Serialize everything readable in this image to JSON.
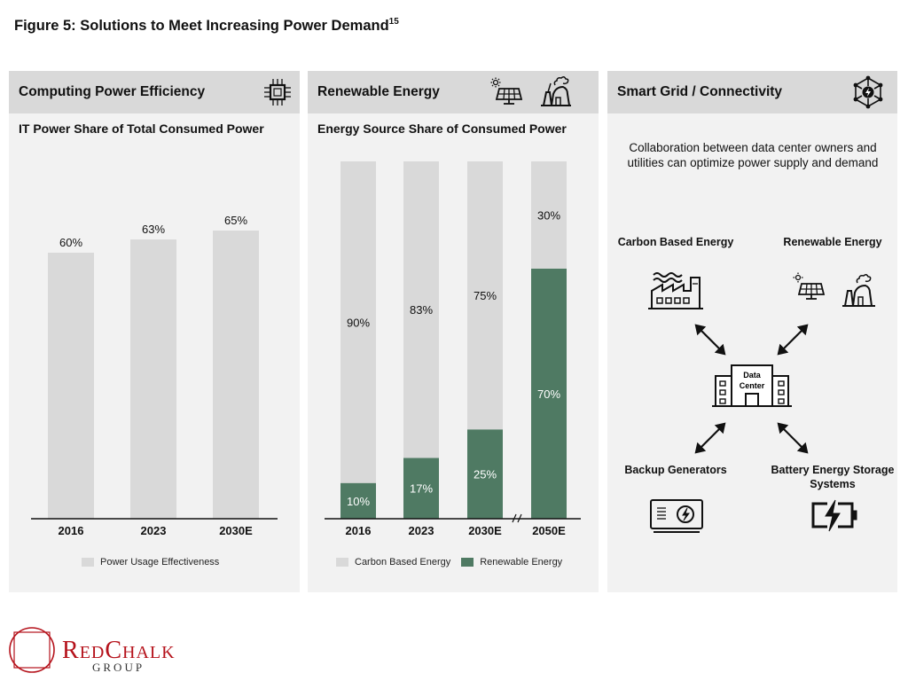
{
  "figure_title": "Figure 5: Solutions to Meet Increasing Power Demand",
  "figure_footnote": "15",
  "colors": {
    "carbon": "#d9d9d9",
    "renewable": "#4f7a63",
    "header": "#d9d9d9",
    "panel": "#f2f2f2",
    "brand": "#b5121b"
  },
  "panel1": {
    "title": "Computing Power Efficiency",
    "icon": "cpu-chip-icon",
    "subtitle": "IT Power Share of Total Consumed Power",
    "legend": "Power Usage Effectiveness"
  },
  "panel2": {
    "title": "Renewable Energy",
    "icons": [
      "solar-panel-icon",
      "power-plant-icon"
    ],
    "subtitle": "Energy Source Share of Consumed Power",
    "legend": [
      "Carbon Based Energy",
      "Renewable Energy"
    ]
  },
  "panel3": {
    "title": "Smart Grid / Connectivity",
    "icon": "network-nodes-icon",
    "description": "Collaboration between data center owners and utilities can optimize power supply and demand",
    "center_label_1": "Data",
    "center_label_2": "Center",
    "nodes": {
      "carbon": "Carbon Based Energy",
      "renewable": "Renewable Energy",
      "backup": "Backup Generators",
      "battery": "Battery Energy Storage Systems"
    }
  },
  "chart_data": [
    {
      "type": "bar",
      "categories": [
        "2016",
        "2023",
        "2030E"
      ],
      "values": [
        60,
        63,
        65
      ],
      "labels": [
        "60%",
        "63%",
        "65%"
      ],
      "title": "IT Power Share of Total Consumed Power",
      "ylim": [
        0,
        100
      ],
      "legend": "Power Usage Effectiveness"
    },
    {
      "type": "bar",
      "stacked": true,
      "categories": [
        "2016",
        "2023",
        "2030E",
        "2050E"
      ],
      "series": [
        {
          "name": "Renewable Energy",
          "values": [
            10,
            17,
            25,
            70
          ],
          "labels": [
            "10%",
            "17%",
            "25%",
            "70%"
          ]
        },
        {
          "name": "Carbon Based Energy",
          "values": [
            90,
            83,
            75,
            30
          ],
          "labels": [
            "90%",
            "83%",
            "75%",
            "30%"
          ]
        }
      ],
      "title": "Energy Source Share of Consumed Power",
      "ylim": [
        0,
        100
      ],
      "axis_break_before": "2050E"
    }
  ],
  "brand": {
    "name_1": "R",
    "name_2": "ED",
    "name_3": "C",
    "name_4": "HALK",
    "sub": "GROUP"
  }
}
